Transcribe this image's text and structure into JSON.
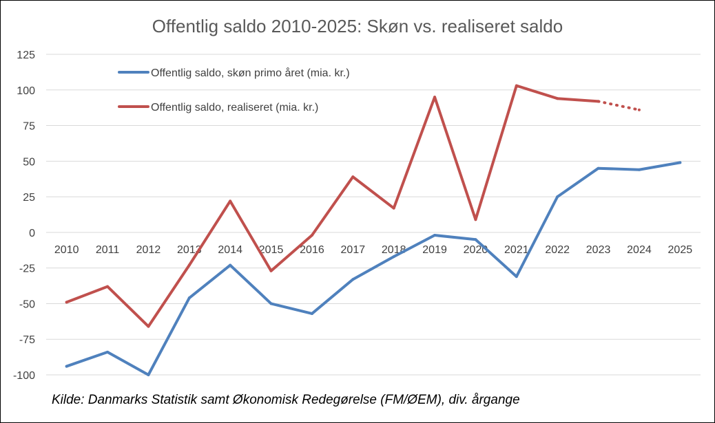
{
  "chart_data": {
    "type": "line",
    "title": "Offentlig saldo 2010-2025: Skøn vs. realiseret saldo",
    "source_note": "Kilde: Danmarks Statistik samt Økonomisk Redegørelse (FM/ØEM), div. årgange",
    "categories": [
      "2010",
      "2011",
      "2012",
      "2013",
      "2014",
      "2015",
      "2016",
      "2017",
      "2018",
      "2019",
      "2020",
      "2021",
      "2022",
      "2023",
      "2024",
      "2025"
    ],
    "y_ticks": [
      "125",
      "100",
      "75",
      "50",
      "25",
      "0",
      "-25",
      "-50",
      "-75",
      "-100"
    ],
    "ylim": [
      -100,
      125
    ],
    "y_step": 25,
    "grid": true,
    "legend_position": "top-left",
    "series": [
      {
        "name": "Offentlig saldo, skøn primo året (mia. kr.)",
        "color": "#4f81bd",
        "values": [
          -94,
          -84,
          -100,
          -46,
          -23,
          -50,
          -57,
          -33,
          -17,
          -2,
          -5,
          -31,
          25,
          45,
          44,
          49
        ],
        "dashed_from_index": null
      },
      {
        "name": "Offentlig saldo, realiseret (mia. kr.)",
        "color": "#c0504d",
        "values": [
          -49,
          -38,
          -66,
          -23,
          22,
          -27,
          -2,
          39,
          17,
          95,
          9,
          103,
          94,
          92,
          86,
          null
        ],
        "dashed_from_index": 13
      }
    ]
  }
}
